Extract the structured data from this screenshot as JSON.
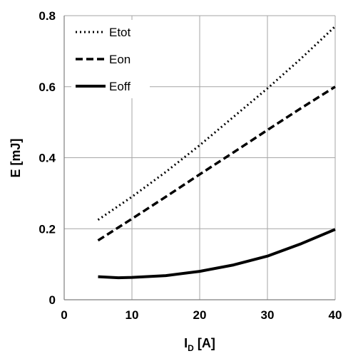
{
  "chart_data": {
    "type": "line",
    "xlabel_main": "I",
    "xlabel_sub": "D",
    "xlabel_rest": " [A]",
    "ylabel": "E [mJ]",
    "xlim": [
      0,
      40
    ],
    "ylim": [
      0,
      0.8
    ],
    "xticks": [
      "0",
      "10",
      "20",
      "30",
      "40"
    ],
    "yticks": [
      "0",
      "0.2",
      "0.4",
      "0.6",
      "0.8"
    ],
    "grid": true,
    "legend_position": "top-left",
    "series": [
      {
        "name": "Etot",
        "style": "dotted",
        "color": "#000000",
        "points": [
          [
            5,
            0.225
          ],
          [
            10,
            0.29
          ],
          [
            15,
            0.36
          ],
          [
            20,
            0.435
          ],
          [
            25,
            0.515
          ],
          [
            30,
            0.595
          ],
          [
            35,
            0.68
          ],
          [
            40,
            0.77
          ]
        ]
      },
      {
        "name": "Eon",
        "style": "dashed",
        "color": "#000000",
        "points": [
          [
            5,
            0.167
          ],
          [
            10,
            0.228
          ],
          [
            15,
            0.29
          ],
          [
            20,
            0.353
          ],
          [
            25,
            0.415
          ],
          [
            30,
            0.478
          ],
          [
            35,
            0.54
          ],
          [
            40,
            0.6
          ]
        ]
      },
      {
        "name": "Eoff",
        "style": "solid",
        "color": "#000000",
        "points": [
          [
            5,
            0.065
          ],
          [
            8,
            0.062
          ],
          [
            10,
            0.063
          ],
          [
            15,
            0.068
          ],
          [
            20,
            0.08
          ],
          [
            25,
            0.098
          ],
          [
            30,
            0.123
          ],
          [
            35,
            0.158
          ],
          [
            40,
            0.198
          ]
        ]
      }
    ]
  }
}
